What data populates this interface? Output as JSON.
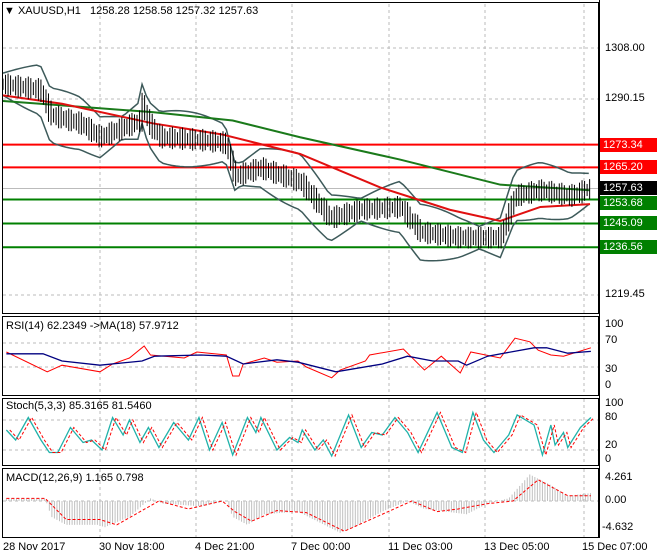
{
  "header": {
    "symbol": "XAUUSD,H1",
    "open": "1258.28",
    "high": "1258.58",
    "low": "1257.32",
    "close": "1257.63"
  },
  "price_axis": [
    "1308.00",
    "1290.15",
    "1219.45"
  ],
  "levels": [
    {
      "label": "1273.34",
      "value": 1273.34,
      "color": "#ff0000"
    },
    {
      "label": "1265.20",
      "value": 1265.2,
      "color": "#ff0000"
    },
    {
      "label": "1257.63",
      "value": 1257.63,
      "color": "#000000"
    },
    {
      "label": "1253.68",
      "value": 1253.68,
      "color": "#008000"
    },
    {
      "label": "1245.09",
      "value": 1245.09,
      "color": "#008000"
    },
    {
      "label": "1236.56",
      "value": 1236.56,
      "color": "#008000"
    }
  ],
  "rsi": {
    "title": "RSI(14) 62.2349  ->MA(18) 57.9712",
    "axis": [
      "100",
      "70",
      "30",
      "0"
    ]
  },
  "stoch": {
    "title": "Stoch(5,3,3) 85.3165 81.5460",
    "axis": [
      "100",
      "80",
      "20",
      "0"
    ]
  },
  "macd": {
    "title": "MACD(12,26,9) 1.165 0.798",
    "axis": [
      "4.261",
      "0.00",
      "-4.632"
    ]
  },
  "time_axis": [
    "28 Nov 2017",
    "30 Nov 18:00",
    "4 Dec 21:00",
    "7 Dec 00:00",
    "11 Dec 03:00",
    "13 Dec 05:00",
    "15 Dec 07:00"
  ],
  "chart_data": {
    "type": "line",
    "xlim": [
      0,
      1400
    ],
    "price": [
      [
        0,
        1295
      ],
      [
        88,
        1293
      ],
      [
        112,
        1284
      ],
      [
        183,
        1281
      ],
      [
        230,
        1276
      ],
      [
        325,
        1282
      ],
      [
        330,
        1288
      ],
      [
        345,
        1281
      ],
      [
        373,
        1276
      ],
      [
        467,
        1275
      ],
      [
        527,
        1274
      ],
      [
        550,
        1262
      ],
      [
        610,
        1265
      ],
      [
        705,
        1260
      ],
      [
        776,
        1247
      ],
      [
        847,
        1250
      ],
      [
        942,
        1251
      ],
      [
        990,
        1242
      ],
      [
        1084,
        1240
      ],
      [
        1180,
        1240
      ],
      [
        1215,
        1255
      ],
      [
        1274,
        1257
      ],
      [
        1345,
        1255
      ],
      [
        1393,
        1257.63
      ]
    ],
    "ma_green": [
      [
        0,
        1289
      ],
      [
        88,
        1288
      ],
      [
        355,
        1285
      ],
      [
        545,
        1282
      ],
      [
        705,
        1276
      ],
      [
        942,
        1268
      ],
      [
        1180,
        1259
      ],
      [
        1393,
        1257
      ]
    ],
    "ma_red": [
      [
        0,
        1291
      ],
      [
        140,
        1288
      ],
      [
        355,
        1281
      ],
      [
        520,
        1277
      ],
      [
        705,
        1270
      ],
      [
        895,
        1258
      ],
      [
        1060,
        1250
      ],
      [
        1180,
        1246
      ],
      [
        1275,
        1251
      ],
      [
        1393,
        1252
      ]
    ],
    "rsi": [
      [
        8,
        55
      ],
      [
        105,
        22
      ],
      [
        140,
        33
      ],
      [
        230,
        22
      ],
      [
        260,
        35
      ],
      [
        300,
        45
      ],
      [
        335,
        65
      ],
      [
        350,
        50
      ],
      [
        430,
        45
      ],
      [
        460,
        55
      ],
      [
        530,
        50
      ],
      [
        545,
        15
      ],
      [
        560,
        15
      ],
      [
        570,
        35
      ],
      [
        620,
        45
      ],
      [
        650,
        38
      ],
      [
        700,
        40
      ],
      [
        720,
        30
      ],
      [
        780,
        12
      ],
      [
        800,
        25
      ],
      [
        860,
        40
      ],
      [
        870,
        50
      ],
      [
        950,
        60
      ],
      [
        1000,
        25
      ],
      [
        1040,
        48
      ],
      [
        1085,
        20
      ],
      [
        1110,
        55
      ],
      [
        1180,
        45
      ],
      [
        1215,
        78
      ],
      [
        1250,
        72
      ],
      [
        1270,
        58
      ],
      [
        1300,
        50
      ],
      [
        1330,
        48
      ],
      [
        1395,
        62
      ]
    ],
    "rsi_ma": [
      [
        8,
        52
      ],
      [
        95,
        52
      ],
      [
        140,
        40
      ],
      [
        230,
        33
      ],
      [
        330,
        40
      ],
      [
        360,
        48
      ],
      [
        470,
        50
      ],
      [
        530,
        48
      ],
      [
        570,
        35
      ],
      [
        650,
        42
      ],
      [
        700,
        38
      ],
      [
        790,
        22
      ],
      [
        900,
        35
      ],
      [
        960,
        48
      ],
      [
        1020,
        40
      ],
      [
        1080,
        40
      ],
      [
        1100,
        33
      ],
      [
        1150,
        48
      ],
      [
        1260,
        62
      ],
      [
        1290,
        62
      ],
      [
        1340,
        53
      ],
      [
        1395,
        56
      ]
    ],
    "stoch": [
      [
        8,
        60
      ],
      [
        30,
        40
      ],
      [
        60,
        85
      ],
      [
        90,
        40
      ],
      [
        110,
        15
      ],
      [
        130,
        15
      ],
      [
        160,
        65
      ],
      [
        190,
        35
      ],
      [
        210,
        40
      ],
      [
        235,
        20
      ],
      [
        260,
        85
      ],
      [
        285,
        50
      ],
      [
        300,
        80
      ],
      [
        325,
        35
      ],
      [
        345,
        65
      ],
      [
        370,
        25
      ],
      [
        405,
        75
      ],
      [
        440,
        40
      ],
      [
        465,
        85
      ],
      [
        490,
        20
      ],
      [
        520,
        75
      ],
      [
        545,
        10
      ],
      [
        580,
        85
      ],
      [
        600,
        55
      ],
      [
        612,
        85
      ],
      [
        650,
        20
      ],
      [
        680,
        45
      ],
      [
        700,
        35
      ],
      [
        710,
        60
      ],
      [
        740,
        20
      ],
      [
        760,
        40
      ],
      [
        780,
        8
      ],
      [
        820,
        90
      ],
      [
        850,
        25
      ],
      [
        875,
        55
      ],
      [
        900,
        50
      ],
      [
        930,
        85
      ],
      [
        960,
        55
      ],
      [
        985,
        15
      ],
      [
        1030,
        95
      ],
      [
        1065,
        25
      ],
      [
        1090,
        15
      ],
      [
        1115,
        95
      ],
      [
        1140,
        40
      ],
      [
        1165,
        15
      ],
      [
        1200,
        50
      ],
      [
        1220,
        90
      ],
      [
        1260,
        70
      ],
      [
        1280,
        10
      ],
      [
        1300,
        70
      ],
      [
        1310,
        30
      ],
      [
        1330,
        55
      ],
      [
        1340,
        25
      ],
      [
        1370,
        65
      ],
      [
        1395,
        85
      ]
    ],
    "macd_signal": [
      [
        8,
        0.5
      ],
      [
        100,
        0.5
      ],
      [
        150,
        -3.5
      ],
      [
        230,
        -3.5
      ],
      [
        270,
        -4.5
      ],
      [
        370,
        0
      ],
      [
        440,
        -1.5
      ],
      [
        520,
        0
      ],
      [
        550,
        -2
      ],
      [
        590,
        -3.8
      ],
      [
        650,
        -1.8
      ],
      [
        720,
        -2.2
      ],
      [
        810,
        -5.7
      ],
      [
        900,
        -2.5
      ],
      [
        970,
        0
      ],
      [
        1030,
        -2
      ],
      [
        1080,
        -1.5
      ],
      [
        1150,
        -0.5
      ],
      [
        1210,
        0
      ],
      [
        1270,
        4
      ],
      [
        1340,
        1
      ],
      [
        1395,
        1
      ]
    ],
    "macd_hist": [
      [
        8,
        0.5
      ],
      [
        100,
        0.5
      ],
      [
        115,
        -3
      ],
      [
        150,
        -4.5
      ],
      [
        230,
        -4.5
      ],
      [
        240,
        -5
      ],
      [
        300,
        -3
      ],
      [
        350,
        0.5
      ],
      [
        380,
        -0.5
      ],
      [
        470,
        -1
      ],
      [
        530,
        0
      ],
      [
        545,
        -3
      ],
      [
        580,
        -4.5
      ],
      [
        620,
        -2.5
      ],
      [
        700,
        -2
      ],
      [
        800,
        -6
      ],
      [
        830,
        -5
      ],
      [
        900,
        -2
      ],
      [
        960,
        0
      ],
      [
        1000,
        -1.5
      ],
      [
        1050,
        -2
      ],
      [
        1100,
        -2.5
      ],
      [
        1150,
        -0.5
      ],
      [
        1200,
        0.5
      ],
      [
        1250,
        5
      ],
      [
        1300,
        3
      ],
      [
        1340,
        1
      ],
      [
        1395,
        1.5
      ]
    ]
  }
}
